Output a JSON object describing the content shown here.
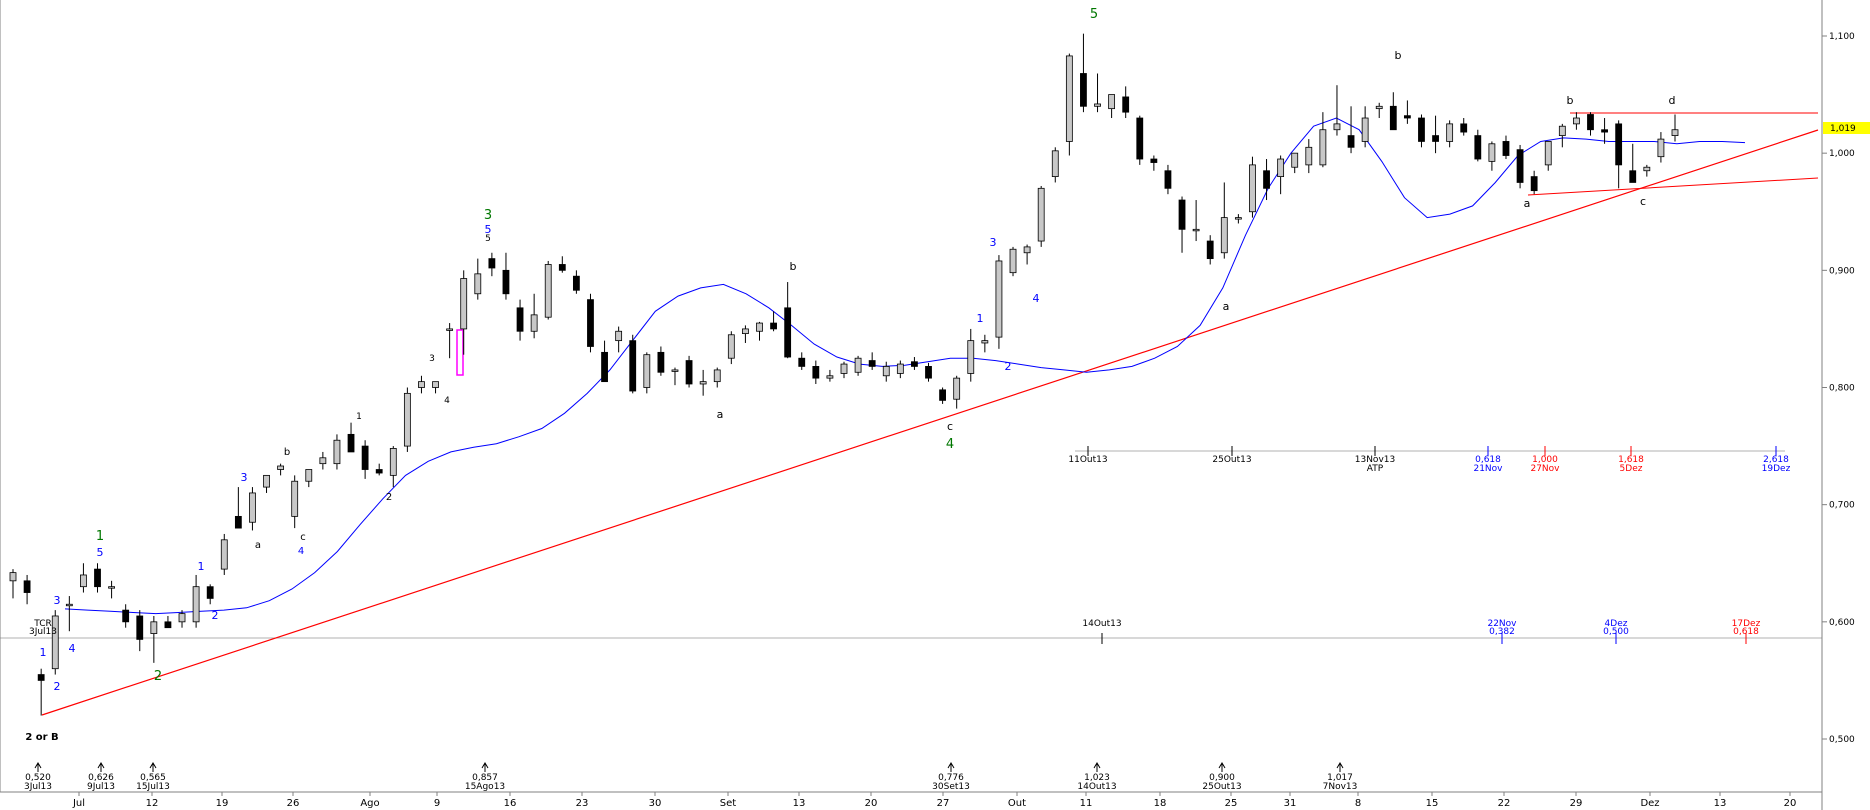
{
  "chart_data": {
    "type": "candlestick",
    "x_axis_labels": [
      "Jul",
      "12",
      "19",
      "26",
      "Ago",
      "9",
      "16",
      "23",
      "30",
      "Set",
      "13",
      "20",
      "27",
      "Out",
      "11",
      "18",
      "25",
      "31",
      "8",
      "15",
      "22",
      "29",
      "Dez",
      "13",
      "20"
    ],
    "y_axis_ticks": [
      "1,100",
      "1,000",
      "0,900",
      "0,800",
      "0,700",
      "0,600",
      "0,500"
    ],
    "ylim": [
      0.45,
      1.13
    ],
    "current_price_label": "1,019",
    "ohlc": [
      {
        "o": 0.635,
        "h": 0.645,
        "l": 0.62,
        "c": 0.642
      },
      {
        "o": 0.635,
        "h": 0.64,
        "l": 0.615,
        "c": 0.625
      },
      {
        "o": 0.555,
        "h": 0.56,
        "l": 0.52,
        "c": 0.55
      },
      {
        "o": 0.56,
        "h": 0.61,
        "l": 0.555,
        "c": 0.605
      },
      {
        "o": 0.615,
        "h": 0.622,
        "l": 0.592,
        "c": 0.615
      },
      {
        "o": 0.63,
        "h": 0.65,
        "l": 0.625,
        "c": 0.64
      },
      {
        "o": 0.645,
        "h": 0.65,
        "l": 0.625,
        "c": 0.63
      },
      {
        "o": 0.63,
        "h": 0.635,
        "l": 0.62,
        "c": 0.63
      },
      {
        "o": 0.61,
        "h": 0.615,
        "l": 0.595,
        "c": 0.6
      },
      {
        "o": 0.605,
        "h": 0.61,
        "l": 0.575,
        "c": 0.585
      },
      {
        "o": 0.59,
        "h": 0.605,
        "l": 0.565,
        "c": 0.6
      },
      {
        "o": 0.6,
        "h": 0.605,
        "l": 0.595,
        "c": 0.595
      },
      {
        "o": 0.6,
        "h": 0.61,
        "l": 0.595,
        "c": 0.607
      },
      {
        "o": 0.6,
        "h": 0.64,
        "l": 0.595,
        "c": 0.63
      },
      {
        "o": 0.63,
        "h": 0.632,
        "l": 0.615,
        "c": 0.62
      },
      {
        "o": 0.645,
        "h": 0.675,
        "l": 0.64,
        "c": 0.67
      },
      {
        "o": 0.69,
        "h": 0.715,
        "l": 0.68,
        "c": 0.68
      },
      {
        "o": 0.685,
        "h": 0.715,
        "l": 0.678,
        "c": 0.71
      },
      {
        "o": 0.715,
        "h": 0.725,
        "l": 0.71,
        "c": 0.725
      },
      {
        "o": 0.73,
        "h": 0.735,
        "l": 0.725,
        "c": 0.733
      },
      {
        "o": 0.69,
        "h": 0.725,
        "l": 0.68,
        "c": 0.72
      },
      {
        "o": 0.72,
        "h": 0.73,
        "l": 0.715,
        "c": 0.73
      },
      {
        "o": 0.735,
        "h": 0.745,
        "l": 0.73,
        "c": 0.74
      },
      {
        "o": 0.735,
        "h": 0.76,
        "l": 0.73,
        "c": 0.755
      },
      {
        "o": 0.76,
        "h": 0.77,
        "l": 0.745,
        "c": 0.745
      },
      {
        "o": 0.75,
        "h": 0.755,
        "l": 0.722,
        "c": 0.73
      },
      {
        "o": 0.73,
        "h": 0.735,
        "l": 0.725,
        "c": 0.727
      },
      {
        "o": 0.725,
        "h": 0.75,
        "l": 0.715,
        "c": 0.748
      },
      {
        "o": 0.75,
        "h": 0.8,
        "l": 0.745,
        "c": 0.795
      },
      {
        "o": 0.8,
        "h": 0.81,
        "l": 0.795,
        "c": 0.805
      },
      {
        "o": 0.8,
        "h": 0.805,
        "l": 0.795,
        "c": 0.805
      },
      {
        "o": 0.85,
        "h": 0.855,
        "l": 0.825,
        "c": 0.85
      },
      {
        "o": 0.85,
        "h": 0.9,
        "l": 0.828,
        "c": 0.893
      },
      {
        "o": 0.88,
        "h": 0.91,
        "l": 0.875,
        "c": 0.897
      },
      {
        "o": 0.91,
        "h": 0.915,
        "l": 0.895,
        "c": 0.902
      },
      {
        "o": 0.9,
        "h": 0.915,
        "l": 0.875,
        "c": 0.88
      },
      {
        "o": 0.868,
        "h": 0.875,
        "l": 0.84,
        "c": 0.848
      },
      {
        "o": 0.848,
        "h": 0.88,
        "l": 0.842,
        "c": 0.862
      },
      {
        "o": 0.86,
        "h": 0.908,
        "l": 0.858,
        "c": 0.905
      },
      {
        "o": 0.905,
        "h": 0.912,
        "l": 0.898,
        "c": 0.9
      },
      {
        "o": 0.895,
        "h": 0.9,
        "l": 0.88,
        "c": 0.883
      },
      {
        "o": 0.875,
        "h": 0.88,
        "l": 0.83,
        "c": 0.835
      },
      {
        "o": 0.83,
        "h": 0.84,
        "l": 0.805,
        "c": 0.805
      },
      {
        "o": 0.84,
        "h": 0.852,
        "l": 0.83,
        "c": 0.848
      },
      {
        "o": 0.84,
        "h": 0.845,
        "l": 0.795,
        "c": 0.797
      },
      {
        "o": 0.8,
        "h": 0.83,
        "l": 0.795,
        "c": 0.828
      },
      {
        "o": 0.83,
        "h": 0.835,
        "l": 0.81,
        "c": 0.813
      },
      {
        "o": 0.815,
        "h": 0.817,
        "l": 0.802,
        "c": 0.815
      },
      {
        "o": 0.823,
        "h": 0.827,
        "l": 0.8,
        "c": 0.803
      },
      {
        "o": 0.803,
        "h": 0.815,
        "l": 0.793,
        "c": 0.805
      },
      {
        "o": 0.805,
        "h": 0.817,
        "l": 0.8,
        "c": 0.815
      },
      {
        "o": 0.825,
        "h": 0.848,
        "l": 0.82,
        "c": 0.845
      },
      {
        "o": 0.846,
        "h": 0.853,
        "l": 0.838,
        "c": 0.85
      },
      {
        "o": 0.848,
        "h": 0.856,
        "l": 0.84,
        "c": 0.855
      },
      {
        "o": 0.855,
        "h": 0.865,
        "l": 0.848,
        "c": 0.85
      },
      {
        "o": 0.868,
        "h": 0.89,
        "l": 0.825,
        "c": 0.826
      },
      {
        "o": 0.825,
        "h": 0.83,
        "l": 0.815,
        "c": 0.818
      },
      {
        "o": 0.818,
        "h": 0.823,
        "l": 0.803,
        "c": 0.808
      },
      {
        "o": 0.808,
        "h": 0.815,
        "l": 0.805,
        "c": 0.81
      },
      {
        "o": 0.812,
        "h": 0.822,
        "l": 0.808,
        "c": 0.82
      },
      {
        "o": 0.813,
        "h": 0.827,
        "l": 0.81,
        "c": 0.825
      },
      {
        "o": 0.823,
        "h": 0.83,
        "l": 0.815,
        "c": 0.818
      },
      {
        "o": 0.81,
        "h": 0.822,
        "l": 0.805,
        "c": 0.818
      },
      {
        "o": 0.812,
        "h": 0.823,
        "l": 0.808,
        "c": 0.82
      },
      {
        "o": 0.822,
        "h": 0.826,
        "l": 0.815,
        "c": 0.818
      },
      {
        "o": 0.818,
        "h": 0.821,
        "l": 0.805,
        "c": 0.808
      },
      {
        "o": 0.798,
        "h": 0.8,
        "l": 0.786,
        "c": 0.789
      },
      {
        "o": 0.79,
        "h": 0.81,
        "l": 0.782,
        "c": 0.808
      },
      {
        "o": 0.812,
        "h": 0.85,
        "l": 0.805,
        "c": 0.84
      },
      {
        "o": 0.838,
        "h": 0.845,
        "l": 0.83,
        "c": 0.84
      },
      {
        "o": 0.843,
        "h": 0.913,
        "l": 0.833,
        "c": 0.908
      },
      {
        "o": 0.898,
        "h": 0.92,
        "l": 0.895,
        "c": 0.918
      },
      {
        "o": 0.915,
        "h": 0.922,
        "l": 0.905,
        "c": 0.92
      },
      {
        "o": 0.925,
        "h": 0.972,
        "l": 0.92,
        "c": 0.97
      },
      {
        "o": 0.98,
        "h": 1.005,
        "l": 0.975,
        "c": 1.002
      },
      {
        "o": 1.01,
        "h": 1.085,
        "l": 0.998,
        "c": 1.083
      },
      {
        "o": 1.068,
        "h": 1.102,
        "l": 1.035,
        "c": 1.04
      },
      {
        "o": 1.04,
        "h": 1.068,
        "l": 1.035,
        "c": 1.042
      },
      {
        "o": 1.038,
        "h": 1.05,
        "l": 1.03,
        "c": 1.05
      },
      {
        "o": 1.048,
        "h": 1.057,
        "l": 1.03,
        "c": 1.035
      },
      {
        "o": 1.03,
        "h": 1.032,
        "l": 0.99,
        "c": 0.995
      },
      {
        "o": 0.995,
        "h": 0.998,
        "l": 0.985,
        "c": 0.992
      },
      {
        "o": 0.985,
        "h": 0.99,
        "l": 0.965,
        "c": 0.97
      },
      {
        "o": 0.96,
        "h": 0.963,
        "l": 0.915,
        "c": 0.935
      },
      {
        "o": 0.935,
        "h": 0.96,
        "l": 0.925,
        "c": 0.935
      },
      {
        "o": 0.925,
        "h": 0.93,
        "l": 0.905,
        "c": 0.91
      },
      {
        "o": 0.915,
        "h": 0.975,
        "l": 0.91,
        "c": 0.945
      },
      {
        "o": 0.945,
        "h": 0.948,
        "l": 0.94,
        "c": 0.945
      },
      {
        "o": 0.95,
        "h": 0.997,
        "l": 0.945,
        "c": 0.99
      },
      {
        "o": 0.985,
        "h": 0.995,
        "l": 0.96,
        "c": 0.97
      },
      {
        "o": 0.98,
        "h": 0.998,
        "l": 0.965,
        "c": 0.995
      },
      {
        "o": 0.988,
        "h": 1.0,
        "l": 0.983,
        "c": 1.0
      },
      {
        "o": 0.99,
        "h": 1.012,
        "l": 0.983,
        "c": 1.005
      },
      {
        "o": 0.99,
        "h": 1.035,
        "l": 0.988,
        "c": 1.02
      },
      {
        "o": 1.02,
        "h": 1.058,
        "l": 1.015,
        "c": 1.025
      },
      {
        "o": 1.015,
        "h": 1.04,
        "l": 1.0,
        "c": 1.005
      },
      {
        "o": 1.01,
        "h": 1.04,
        "l": 1.005,
        "c": 1.03
      },
      {
        "o": 1.038,
        "h": 1.043,
        "l": 1.03,
        "c": 1.04
      },
      {
        "o": 1.04,
        "h": 1.052,
        "l": 1.02,
        "c": 1.02
      },
      {
        "o": 1.032,
        "h": 1.045,
        "l": 1.025,
        "c": 1.03
      },
      {
        "o": 1.03,
        "h": 1.033,
        "l": 1.005,
        "c": 1.01
      },
      {
        "o": 1.015,
        "h": 1.032,
        "l": 1.0,
        "c": 1.01
      },
      {
        "o": 1.01,
        "h": 1.028,
        "l": 1.005,
        "c": 1.025
      },
      {
        "o": 1.025,
        "h": 1.03,
        "l": 1.015,
        "c": 1.018
      },
      {
        "o": 1.015,
        "h": 1.02,
        "l": 0.993,
        "c": 0.995
      },
      {
        "o": 0.993,
        "h": 1.01,
        "l": 0.985,
        "c": 1.008
      },
      {
        "o": 1.01,
        "h": 1.015,
        "l": 0.995,
        "c": 0.998
      },
      {
        "o": 1.003,
        "h": 1.007,
        "l": 0.97,
        "c": 0.975
      },
      {
        "o": 0.98,
        "h": 0.985,
        "l": 0.965,
        "c": 0.968
      },
      {
        "o": 0.99,
        "h": 1.01,
        "l": 0.985,
        "c": 1.01
      },
      {
        "o": 1.015,
        "h": 1.025,
        "l": 1.005,
        "c": 1.023
      },
      {
        "o": 1.025,
        "h": 1.035,
        "l": 1.02,
        "c": 1.03
      },
      {
        "o": 1.033,
        "h": 1.035,
        "l": 1.015,
        "c": 1.02
      },
      {
        "o": 1.02,
        "h": 1.03,
        "l": 1.008,
        "c": 1.018
      },
      {
        "o": 1.025,
        "h": 1.028,
        "l": 0.97,
        "c": 0.99
      },
      {
        "o": 0.985,
        "h": 1.008,
        "l": 0.98,
        "c": 0.975
      },
      {
        "o": 0.985,
        "h": 0.99,
        "l": 0.98,
        "c": 0.988
      },
      {
        "o": 0.997,
        "h": 1.018,
        "l": 0.992,
        "c": 1.012
      },
      {
        "o": 1.015,
        "h": 1.033,
        "l": 1.01,
        "c": 1.02
      }
    ],
    "moving_average": [
      0.611,
      0.61,
      0.609,
      0.608,
      0.607,
      0.608,
      0.609,
      0.61,
      0.612,
      0.618,
      0.628,
      0.642,
      0.66,
      0.683,
      0.705,
      0.725,
      0.737,
      0.745,
      0.749,
      0.752,
      0.758,
      0.765,
      0.778,
      0.795,
      0.815,
      0.84,
      0.865,
      0.878,
      0.885,
      0.888,
      0.88,
      0.868,
      0.853,
      0.837,
      0.826,
      0.82,
      0.818,
      0.819,
      0.822,
      0.825,
      0.825,
      0.823,
      0.82,
      0.817,
      0.815,
      0.813,
      0.815,
      0.818,
      0.825,
      0.835,
      0.853,
      0.885,
      0.93,
      0.97,
      1.0,
      1.023,
      1.03,
      1.02,
      0.993,
      0.962,
      0.945,
      0.948,
      0.955,
      0.975,
      0.998,
      1.01,
      1.013,
      1.012,
      1.01,
      1.01,
      1.01,
      1.008,
      1.01,
      1.01,
      1.009
    ],
    "moving_average_x_start": 0.0,
    "annotations": [
      {
        "text": "1",
        "color": "#0000ff"
      },
      {
        "text": "2",
        "color": "#0000ff"
      },
      {
        "text": "3",
        "color": "#0000ff"
      },
      {
        "text": "4",
        "color": "#0000ff"
      },
      {
        "text": "1",
        "color": "#007700"
      },
      {
        "text": "5",
        "color": "#0000ff"
      },
      {
        "text": "2",
        "color": "#007700"
      },
      {
        "text": "1",
        "color": "#0000ff"
      },
      {
        "text": "2",
        "color": "#0000ff"
      },
      {
        "text": "3",
        "color": "#0000ff"
      },
      {
        "text": "a",
        "color": "#000000"
      },
      {
        "text": "b",
        "color": "#000000"
      },
      {
        "text": "c",
        "color": "#000000"
      },
      {
        "text": "4",
        "color": "#0000ff"
      },
      {
        "text": "1",
        "color": "#000000"
      },
      {
        "text": "2",
        "color": "#000000"
      },
      {
        "text": "3",
        "color": "#000000"
      },
      {
        "text": "4",
        "color": "#000000"
      },
      {
        "text": "3",
        "color": "#007700"
      },
      {
        "text": "5",
        "color": "#0000ff"
      },
      {
        "text": "5",
        "color": "#000000"
      },
      {
        "text": "a",
        "color": "#000000"
      },
      {
        "text": "b",
        "color": "#000000"
      },
      {
        "text": "c",
        "color": "#000000"
      },
      {
        "text": "4",
        "color": "#007700"
      },
      {
        "text": "1",
        "color": "#0000ff"
      },
      {
        "text": "2",
        "color": "#0000ff"
      },
      {
        "text": "3",
        "color": "#0000ff"
      },
      {
        "text": "4",
        "color": "#0000ff"
      },
      {
        "text": "5",
        "color": "#007700"
      },
      {
        "text": "a",
        "color": "#000000"
      },
      {
        "text": "b",
        "color": "#000000"
      },
      {
        "text": "b",
        "color": "#000000"
      },
      {
        "text": "a",
        "color": "#000000"
      },
      {
        "text": "c",
        "color": "#000000"
      },
      {
        "text": "d",
        "color": "#000000"
      },
      {
        "text": "2 or B",
        "color": "#000000"
      },
      {
        "text": "TCR",
        "color": "#000000"
      },
      {
        "text": "3Jul13",
        "color": "#000000"
      }
    ],
    "time_cycle_labels_top": [
      {
        "label": "11Out13",
        "color": "#000000"
      },
      {
        "label": "25Out13",
        "color": "#000000"
      },
      {
        "label": "13Nov13",
        "label2": "ATP",
        "color": "#000000"
      },
      {
        "label": "0,618",
        "label2": "21Nov",
        "color": "#0000ff"
      },
      {
        "label": "1,000",
        "label2": "27Nov",
        "color": "#ff0000"
      },
      {
        "label": "1,618",
        "label2": "5Dez",
        "color": "#ff0000"
      },
      {
        "label": "2,618",
        "label2": "19Dez",
        "color": "#0000ff"
      }
    ],
    "time_cycle_labels_mid": [
      {
        "label": "14Out13",
        "color": "#000000"
      },
      {
        "label": "22Nov",
        "label2": "0,382",
        "color": "#0000ff"
      },
      {
        "label": "4Dez",
        "label2": "0,500",
        "color": "#0000ff"
      },
      {
        "label": "17Dez",
        "label2": "0,618",
        "color": "#ff0000"
      }
    ],
    "bottom_price_markers": [
      {
        "price": "0,520",
        "date": "3Jul13"
      },
      {
        "price": "0,626",
        "date": "9Jul13"
      },
      {
        "price": "0,565",
        "date": "15Jul13"
      },
      {
        "price": "0,857",
        "date": "15Ago13"
      },
      {
        "price": "0,776",
        "date": "30Set13"
      },
      {
        "price": "1,023",
        "date": "14Out13"
      },
      {
        "price": "0,900",
        "date": "25Out13"
      },
      {
        "price": "1,017",
        "date": "7Nov13"
      }
    ],
    "colors": {
      "bull": "#c8c8c8",
      "bear": "#000000",
      "ma": "#0000ff",
      "trendline": "#ff0000",
      "highlight": "#ffff00",
      "magenta": "#ff00ff"
    }
  }
}
